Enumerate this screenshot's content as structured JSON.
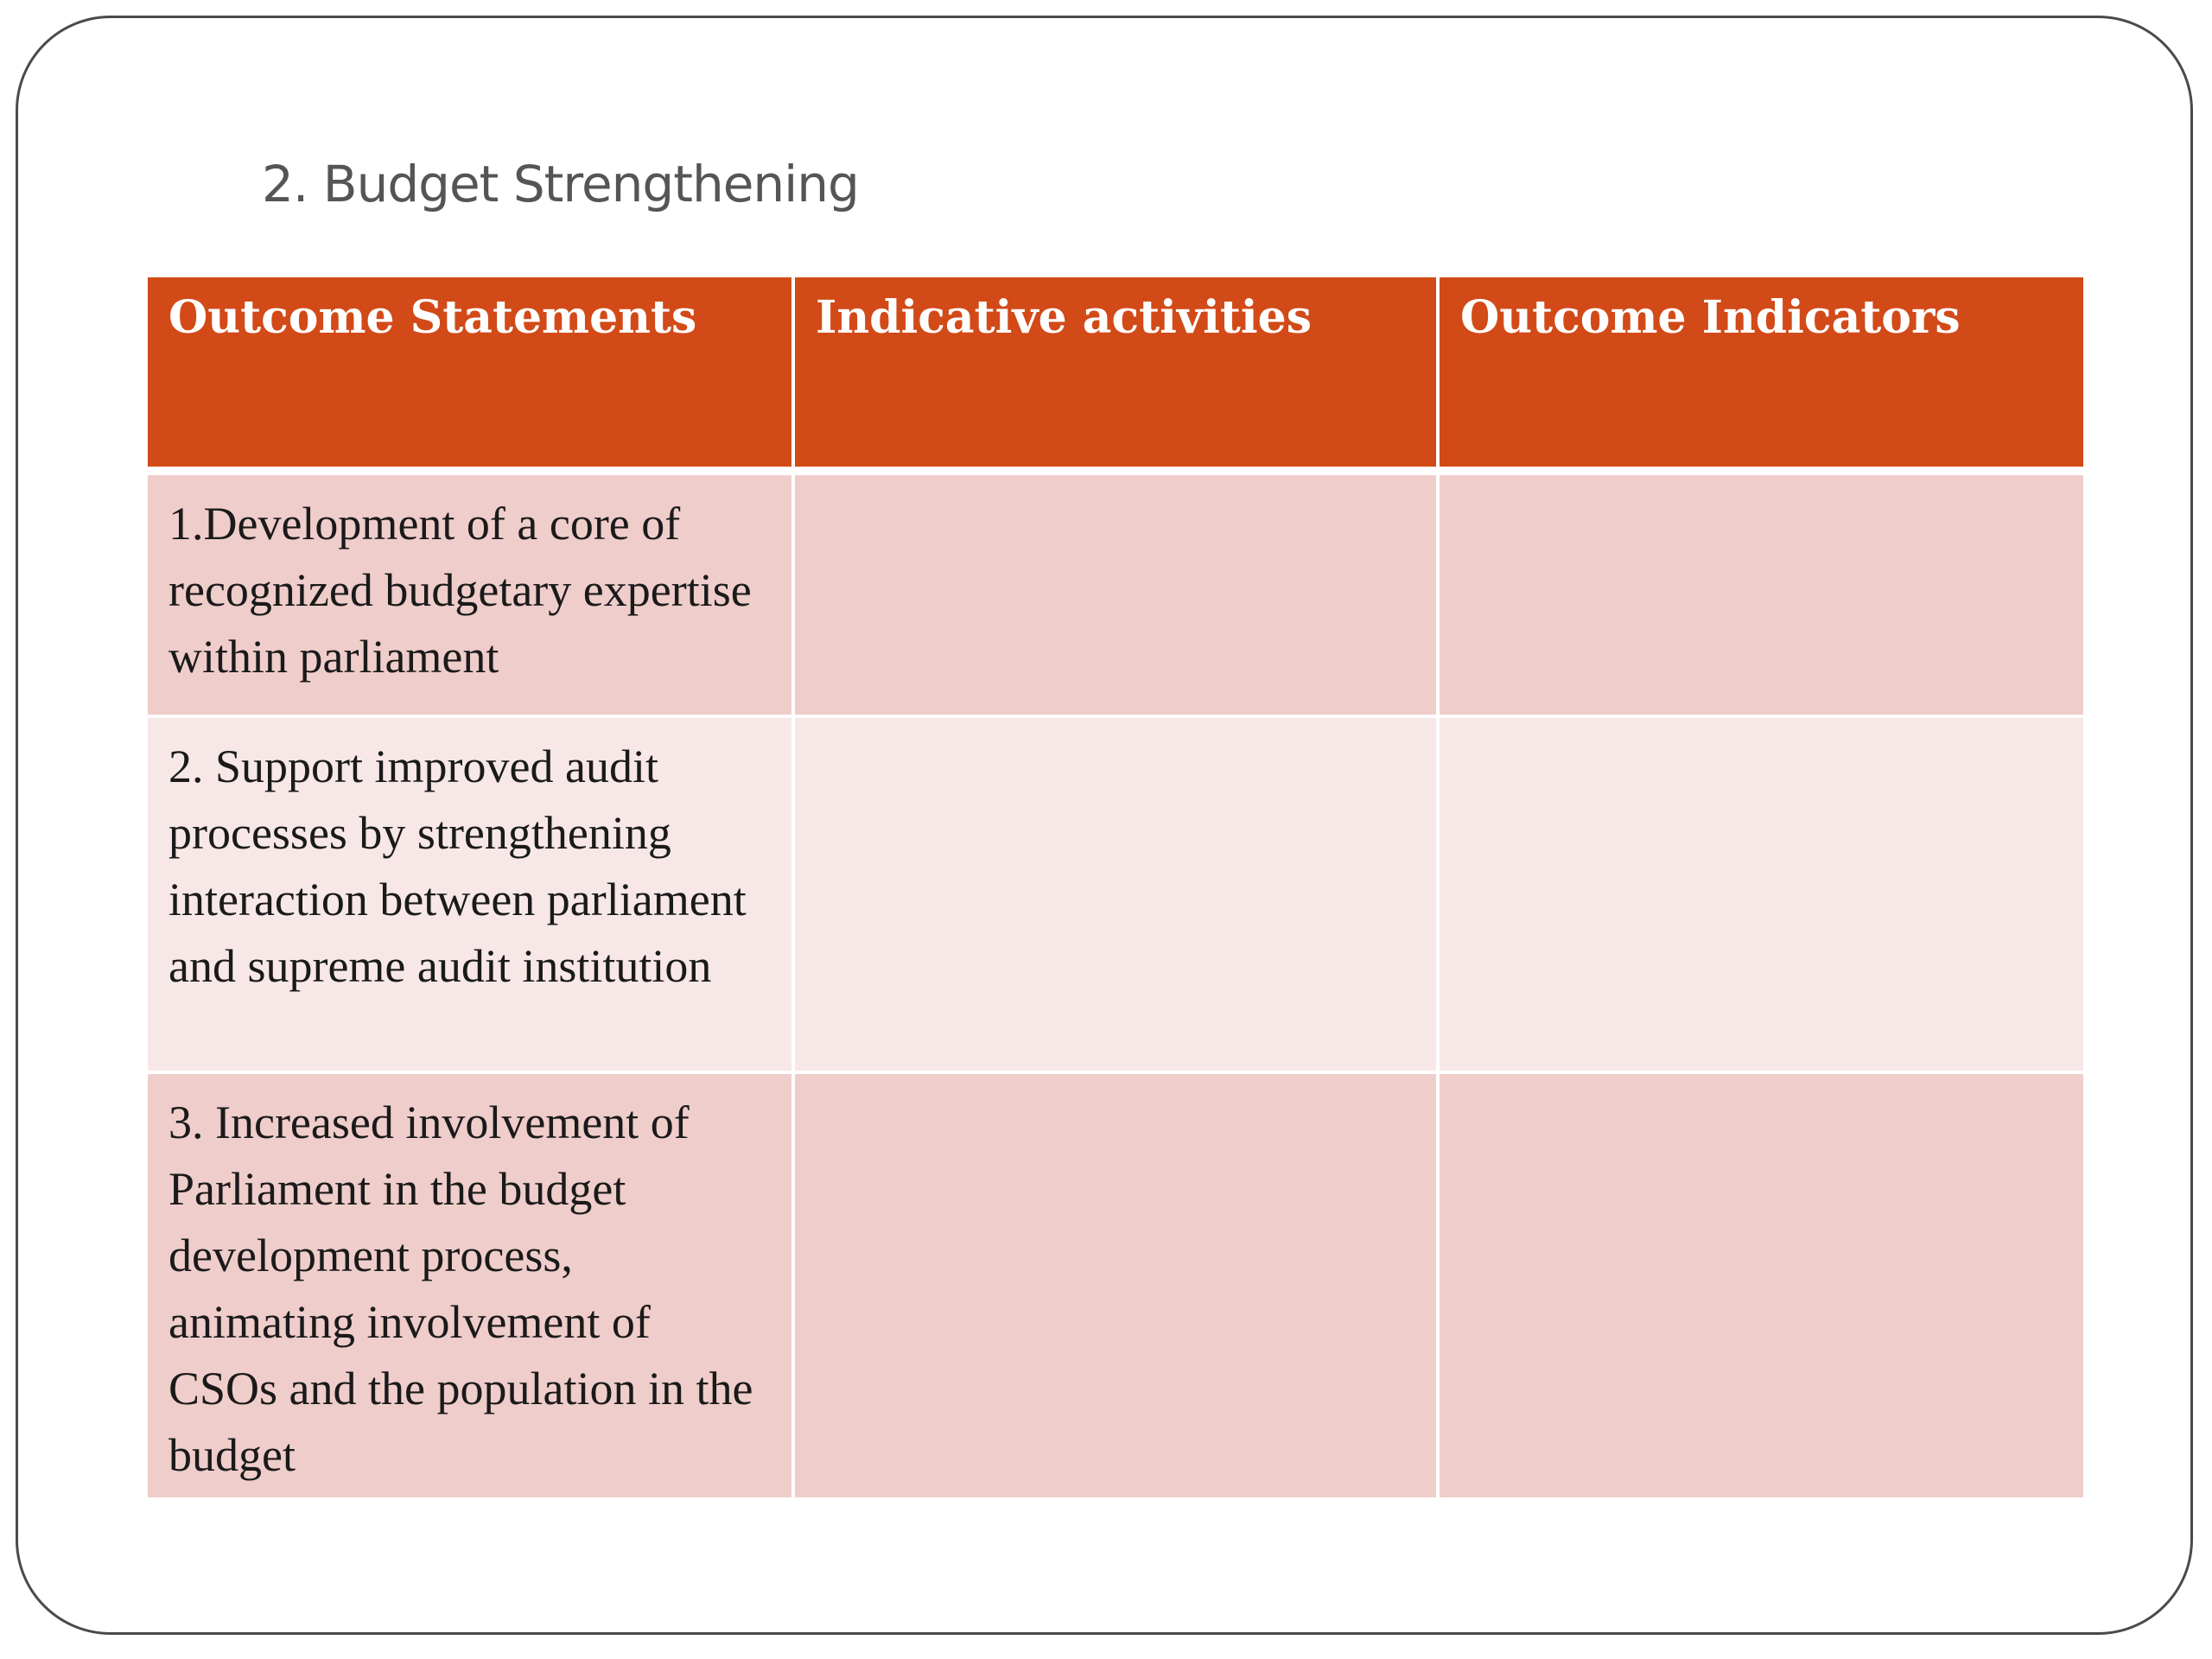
{
  "slide": {
    "title": "2. Budget Strengthening"
  },
  "table": {
    "headers": [
      "Outcome Statements",
      "Indicative activities",
      "Outcome Indicators"
    ],
    "rows": [
      {
        "outcome_statement": "1.Development of a core of recognized budgetary expertise within parliament",
        "indicative_activities": "",
        "outcome_indicators": ""
      },
      {
        "outcome_statement": "2. Support improved audit processes by strengthening interaction between parliament and supreme audit institution",
        "indicative_activities": "",
        "outcome_indicators": ""
      },
      {
        "outcome_statement": "3. Increased involvement of Parliament in the budget development process, animating involvement  of CSOs and the population in the budget",
        "indicative_activities": "",
        "outcome_indicators": ""
      }
    ]
  },
  "colors": {
    "header_background": "#d24a18",
    "header_text": "#ffffff",
    "row_dark": "#efcdcb",
    "row_light": "#f7e8e7",
    "title_text": "#555555"
  }
}
